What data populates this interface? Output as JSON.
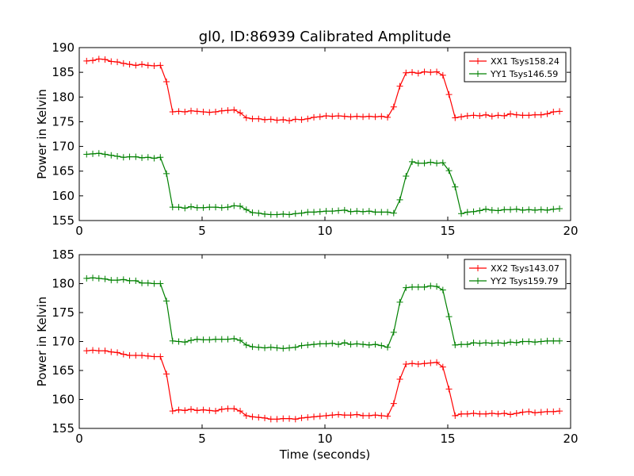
{
  "chart_data": [
    {
      "type": "line",
      "title": "gl0, ID:86939 Calibrated Amplitude",
      "xlabel": "",
      "ylabel": "Power in Kelvin",
      "xlim": [
        0,
        20
      ],
      "ylim": [
        155,
        190
      ],
      "xticks": [
        "0",
        "5",
        "10",
        "15",
        "20"
      ],
      "yticks": [
        "155",
        "160",
        "165",
        "170",
        "175",
        "180",
        "185",
        "190"
      ],
      "legend_position": "top-right",
      "marker": "+",
      "grid": false,
      "x": [
        0.3,
        0.55,
        0.8,
        1.05,
        1.3,
        1.55,
        1.8,
        2.05,
        2.3,
        2.55,
        2.8,
        3.05,
        3.3,
        3.55,
        3.8,
        4.05,
        4.3,
        4.55,
        4.8,
        5.05,
        5.3,
        5.55,
        5.8,
        6.05,
        6.3,
        6.55,
        6.8,
        7.05,
        7.3,
        7.55,
        7.8,
        8.05,
        8.3,
        8.55,
        8.8,
        9.05,
        9.3,
        9.55,
        9.8,
        10.05,
        10.3,
        10.55,
        10.8,
        11.05,
        11.3,
        11.55,
        11.8,
        12.05,
        12.3,
        12.55,
        12.8,
        13.05,
        13.3,
        13.55,
        13.8,
        14.05,
        14.3,
        14.55,
        14.8,
        15.05,
        15.3,
        15.55,
        15.8,
        16.05,
        16.3,
        16.55,
        16.8,
        17.05,
        17.3,
        17.55,
        17.8,
        18.05,
        18.3,
        18.55,
        18.8,
        19.05,
        19.3,
        19.55
      ],
      "series": [
        {
          "name": "XX1 Tsys158.24",
          "color": "#ff0000",
          "values": [
            187.3,
            187.4,
            187.7,
            187.6,
            187.2,
            187.1,
            186.8,
            186.6,
            186.4,
            186.6,
            186.4,
            186.3,
            186.4,
            183.1,
            177.0,
            177.1,
            177.0,
            177.2,
            177.1,
            177.0,
            176.9,
            177.0,
            177.2,
            177.3,
            177.4,
            176.8,
            175.8,
            175.6,
            175.6,
            175.4,
            175.5,
            175.3,
            175.4,
            175.2,
            175.5,
            175.4,
            175.6,
            175.9,
            176.0,
            176.2,
            176.1,
            176.2,
            176.1,
            176.0,
            176.1,
            176.0,
            176.1,
            176.0,
            176.1,
            175.9,
            178.0,
            182.2,
            184.9,
            185.0,
            184.8,
            185.1,
            185.0,
            185.1,
            184.4,
            180.5,
            175.8,
            176.0,
            176.2,
            176.3,
            176.2,
            176.4,
            176.1,
            176.3,
            176.2,
            176.6,
            176.4,
            176.3,
            176.3,
            176.4,
            176.4,
            176.6,
            177.0,
            177.1
          ]
        },
        {
          "name": "YY1 Tsys146.59",
          "color": "#008000",
          "values": [
            168.4,
            168.5,
            168.6,
            168.4,
            168.2,
            168.0,
            167.8,
            167.9,
            167.9,
            167.7,
            167.8,
            167.6,
            167.8,
            164.5,
            157.7,
            157.7,
            157.5,
            157.8,
            157.6,
            157.6,
            157.7,
            157.7,
            157.6,
            157.7,
            158.0,
            157.9,
            157.2,
            156.6,
            156.5,
            156.3,
            156.2,
            156.2,
            156.3,
            156.2,
            156.4,
            156.5,
            156.7,
            156.7,
            156.8,
            156.9,
            156.9,
            157.0,
            157.1,
            156.8,
            156.9,
            156.8,
            156.9,
            156.7,
            156.7,
            156.7,
            156.5,
            159.2,
            164.0,
            166.9,
            166.6,
            166.6,
            166.8,
            166.6,
            166.7,
            165.1,
            161.8,
            156.4,
            156.7,
            156.8,
            157.0,
            157.3,
            157.1,
            157.0,
            157.2,
            157.2,
            157.3,
            157.1,
            157.2,
            157.1,
            157.2,
            157.1,
            157.3,
            157.4
          ]
        }
      ]
    },
    {
      "type": "line",
      "title": "",
      "xlabel": "Time (seconds)",
      "ylabel": "Power in Kelvin",
      "xlim": [
        0,
        20
      ],
      "ylim": [
        155,
        185
      ],
      "xticks": [
        "0",
        "5",
        "10",
        "15",
        "20"
      ],
      "yticks": [
        "155",
        "160",
        "165",
        "170",
        "175",
        "180",
        "185"
      ],
      "legend_position": "top-right",
      "marker": "+",
      "grid": false,
      "x": [
        0.3,
        0.55,
        0.8,
        1.05,
        1.3,
        1.55,
        1.8,
        2.05,
        2.3,
        2.55,
        2.8,
        3.05,
        3.3,
        3.55,
        3.8,
        4.05,
        4.3,
        4.55,
        4.8,
        5.05,
        5.3,
        5.55,
        5.8,
        6.05,
        6.3,
        6.55,
        6.8,
        7.05,
        7.3,
        7.55,
        7.8,
        8.05,
        8.3,
        8.55,
        8.8,
        9.05,
        9.3,
        9.55,
        9.8,
        10.05,
        10.3,
        10.55,
        10.8,
        11.05,
        11.3,
        11.55,
        11.8,
        12.05,
        12.3,
        12.55,
        12.8,
        13.05,
        13.3,
        13.55,
        13.8,
        14.05,
        14.3,
        14.55,
        14.8,
        15.05,
        15.3,
        15.55,
        15.8,
        16.05,
        16.3,
        16.55,
        16.8,
        17.05,
        17.3,
        17.55,
        17.8,
        18.05,
        18.3,
        18.55,
        18.8,
        19.05,
        19.3,
        19.55
      ],
      "series": [
        {
          "name": "XX2 Tsys143.07",
          "color": "#ff0000",
          "values": [
            168.4,
            168.5,
            168.4,
            168.4,
            168.2,
            168.1,
            167.8,
            167.6,
            167.6,
            167.6,
            167.5,
            167.4,
            167.4,
            164.4,
            158.0,
            158.2,
            158.1,
            158.3,
            158.1,
            158.2,
            158.1,
            158.0,
            158.3,
            158.4,
            158.4,
            158.0,
            157.2,
            157.0,
            156.9,
            156.8,
            156.6,
            156.6,
            156.7,
            156.7,
            156.6,
            156.8,
            156.9,
            157.0,
            157.1,
            157.2,
            157.3,
            157.4,
            157.3,
            157.3,
            157.4,
            157.2,
            157.2,
            157.3,
            157.2,
            157.1,
            159.3,
            163.5,
            166.1,
            166.2,
            166.1,
            166.2,
            166.3,
            166.4,
            165.6,
            161.8,
            157.2,
            157.5,
            157.5,
            157.6,
            157.5,
            157.5,
            157.6,
            157.5,
            157.6,
            157.4,
            157.6,
            157.8,
            157.9,
            157.7,
            157.8,
            157.9,
            157.9,
            158.0
          ]
        },
        {
          "name": "YY2 Tsys159.79",
          "color": "#008000",
          "values": [
            180.9,
            181.0,
            180.9,
            180.8,
            180.6,
            180.6,
            180.7,
            180.5,
            180.5,
            180.1,
            180.1,
            180.0,
            180.0,
            177.0,
            170.1,
            170.0,
            169.9,
            170.2,
            170.4,
            170.3,
            170.3,
            170.4,
            170.4,
            170.4,
            170.5,
            170.2,
            169.4,
            169.1,
            169.0,
            168.9,
            169.0,
            168.9,
            168.8,
            168.9,
            169.0,
            169.3,
            169.4,
            169.5,
            169.6,
            169.6,
            169.7,
            169.5,
            169.8,
            169.5,
            169.6,
            169.5,
            169.4,
            169.5,
            169.3,
            169.0,
            171.6,
            176.8,
            179.3,
            179.4,
            179.4,
            179.4,
            179.6,
            179.5,
            178.9,
            174.3,
            169.4,
            169.5,
            169.5,
            169.8,
            169.7,
            169.8,
            169.7,
            169.8,
            169.7,
            169.9,
            169.8,
            170.0,
            170.0,
            169.9,
            170.0,
            170.1,
            170.1,
            170.1
          ]
        }
      ]
    }
  ]
}
